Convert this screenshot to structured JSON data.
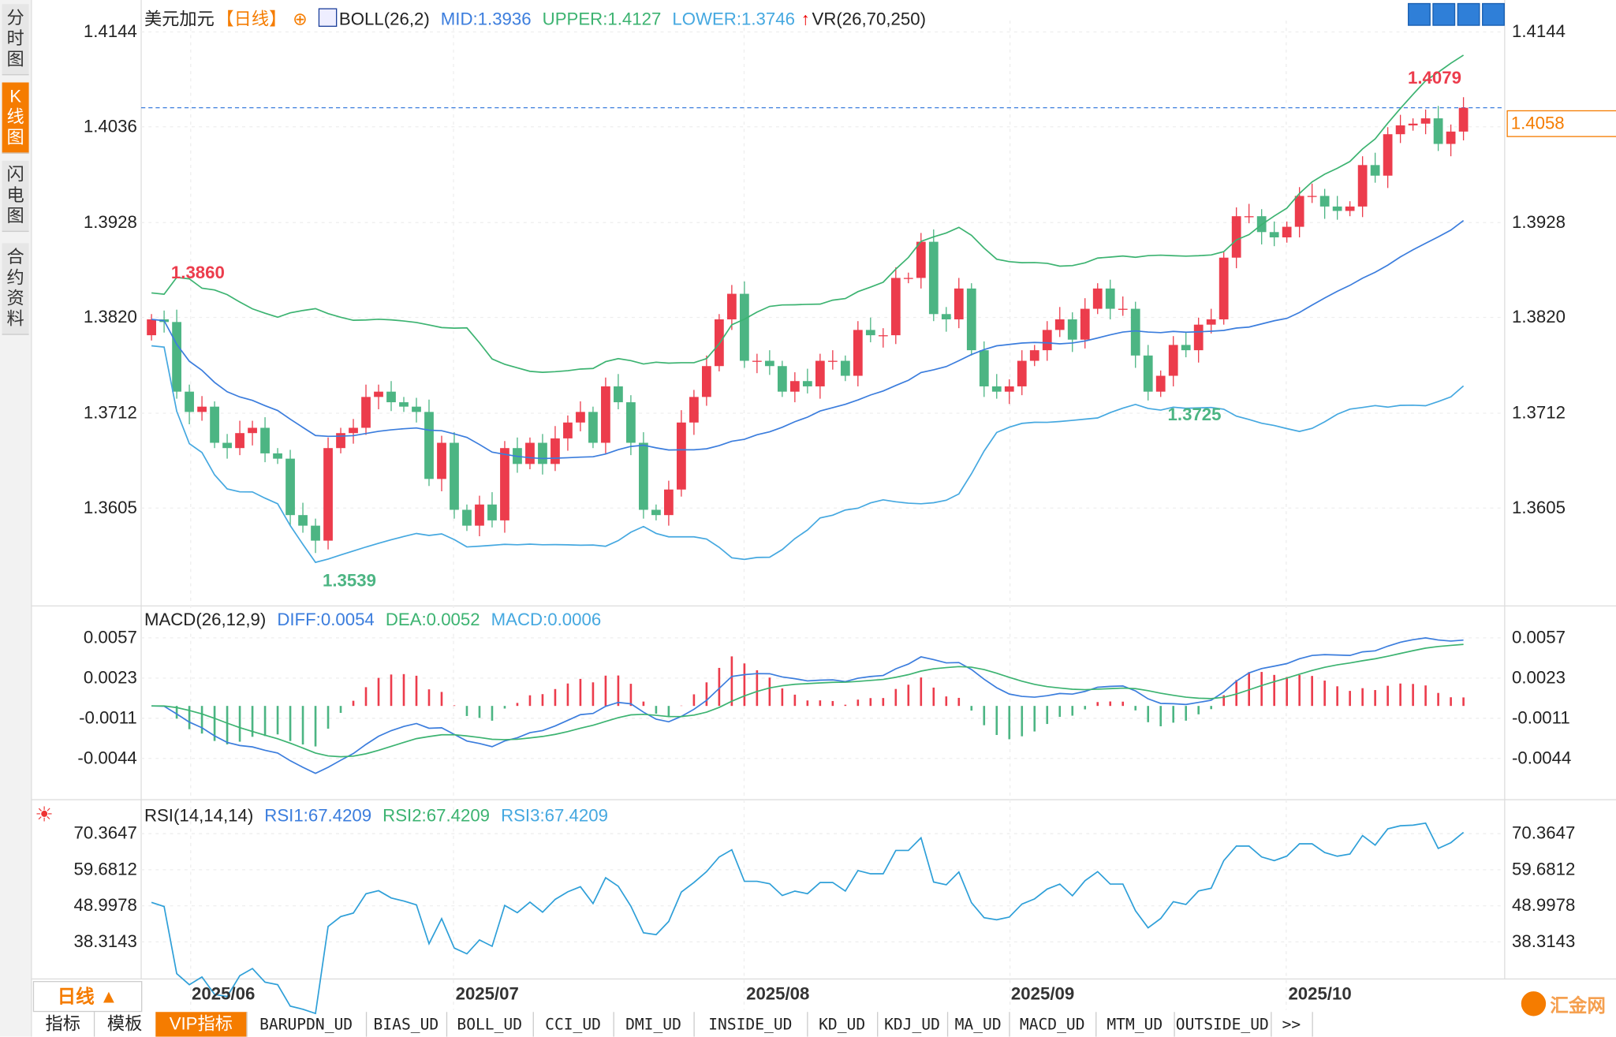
{
  "sidebar": {
    "tabs": [
      {
        "label": "分时图"
      },
      {
        "label": "K线图",
        "active": true
      },
      {
        "label": "闪电图"
      },
      {
        "label": "合约资料"
      }
    ]
  },
  "header": {
    "symbol": "美元加元",
    "period": "【日线】",
    "indicator": "BOLL(26,2)",
    "mid": "MID:1.3936",
    "upper": "UPPER:1.4127",
    "lower": "LOWER:1.3746",
    "vr": "VR(26,70,250)"
  },
  "main_axis": {
    "labels": [
      "1.4144",
      "1.4036",
      "1.3928",
      "1.3820",
      "1.3712",
      "1.3605"
    ]
  },
  "current_price": "1.4058",
  "annotations": {
    "high": "1.4079",
    "low": "1.3539",
    "left_high": "1.3860",
    "mid_low": "1.3725"
  },
  "macd": {
    "title": "MACD(26,12,9)",
    "diff": "DIFF:0.0054",
    "dea": "DEA:0.0052",
    "macd": "MACD:0.0006",
    "labels": [
      "0.0057",
      "0.0023",
      "-0.0011",
      "-0.0044"
    ]
  },
  "rsi": {
    "title": "RSI(14,14,14)",
    "rsi1": "RSI1:67.4209",
    "rsi2": "RSI2:67.4209",
    "rsi3": "RSI3:67.4209",
    "labels": [
      "70.3647",
      "59.6812",
      "48.9978",
      "38.3143"
    ]
  },
  "period_selector": "日线 ▲",
  "dates": [
    "2025/06",
    "2025/07",
    "2025/08",
    "2025/09",
    "2025/10"
  ],
  "bottom_tabs": [
    "指标",
    "模板",
    "VIP指标",
    "BARUPDN_UD",
    "BIAS_UD",
    "BOLL_UD",
    "CCI_UD",
    "DMI_UD",
    "INSIDE_UD",
    "KD_UD",
    "KDJ_UD",
    "MA_UD",
    "MACD_UD",
    "MTM_UD",
    "OUTSIDE_UD",
    ">>"
  ],
  "watermark": "汇金网",
  "colors": {
    "up": "#ec3c4c",
    "down": "#4cb583",
    "mid": "#3b7ddd",
    "upper": "#3cb371",
    "lower": "#45a8e0",
    "accent": "#f57c00"
  },
  "chart_data": {
    "type": "candlestick",
    "title": "美元加元 日线",
    "ylim": [
      1.353,
      1.416
    ],
    "closes": [
      1.3818,
      1.3815,
      1.3736,
      1.3713,
      1.3719,
      1.3678,
      1.3672,
      1.3689,
      1.3695,
      1.3666,
      1.366,
      1.3596,
      1.3584,
      1.3567,
      1.3672,
      1.3689,
      1.3695,
      1.373,
      1.3736,
      1.3724,
      1.3719,
      1.3713,
      1.3637,
      1.3678,
      1.3602,
      1.3584,
      1.3608,
      1.359,
      1.3672,
      1.3654,
      1.3678,
      1.3654,
      1.3683,
      1.3701,
      1.3713,
      1.3678,
      1.3742,
      1.3724,
      1.3678,
      1.3602,
      1.3596,
      1.3625,
      1.3701,
      1.373,
      1.3765,
      1.3818,
      1.3847,
      1.3771,
      1.3771,
      1.3765,
      1.3736,
      1.3748,
      1.3742,
      1.3771,
      1.3771,
      1.3754,
      1.3806,
      1.38,
      1.38,
      1.3865,
      1.3865,
      1.3906,
      1.3824,
      1.3818,
      1.3853,
      1.3783,
      1.3742,
      1.3736,
      1.3742,
      1.3771,
      1.3783,
      1.3806,
      1.3818,
      1.3795,
      1.383,
      1.3853,
      1.383,
      1.383,
      1.3777,
      1.3736,
      1.3754,
      1.3789,
      1.3783,
      1.3812,
      1.3818,
      1.3888,
      1.3935,
      1.3935,
      1.3917,
      1.3911,
      1.3923,
      1.3958,
      1.3958,
      1.3946,
      1.3941,
      1.3946,
      1.3993,
      1.3981,
      1.4028,
      1.4038,
      1.404,
      1.4046,
      1.4017,
      1.4031,
      1.4058
    ],
    "first_open": 1.38,
    "macd_ylim": [
      -0.006,
      0.0065
    ],
    "rsi_ylim": [
      30,
      75
    ]
  }
}
